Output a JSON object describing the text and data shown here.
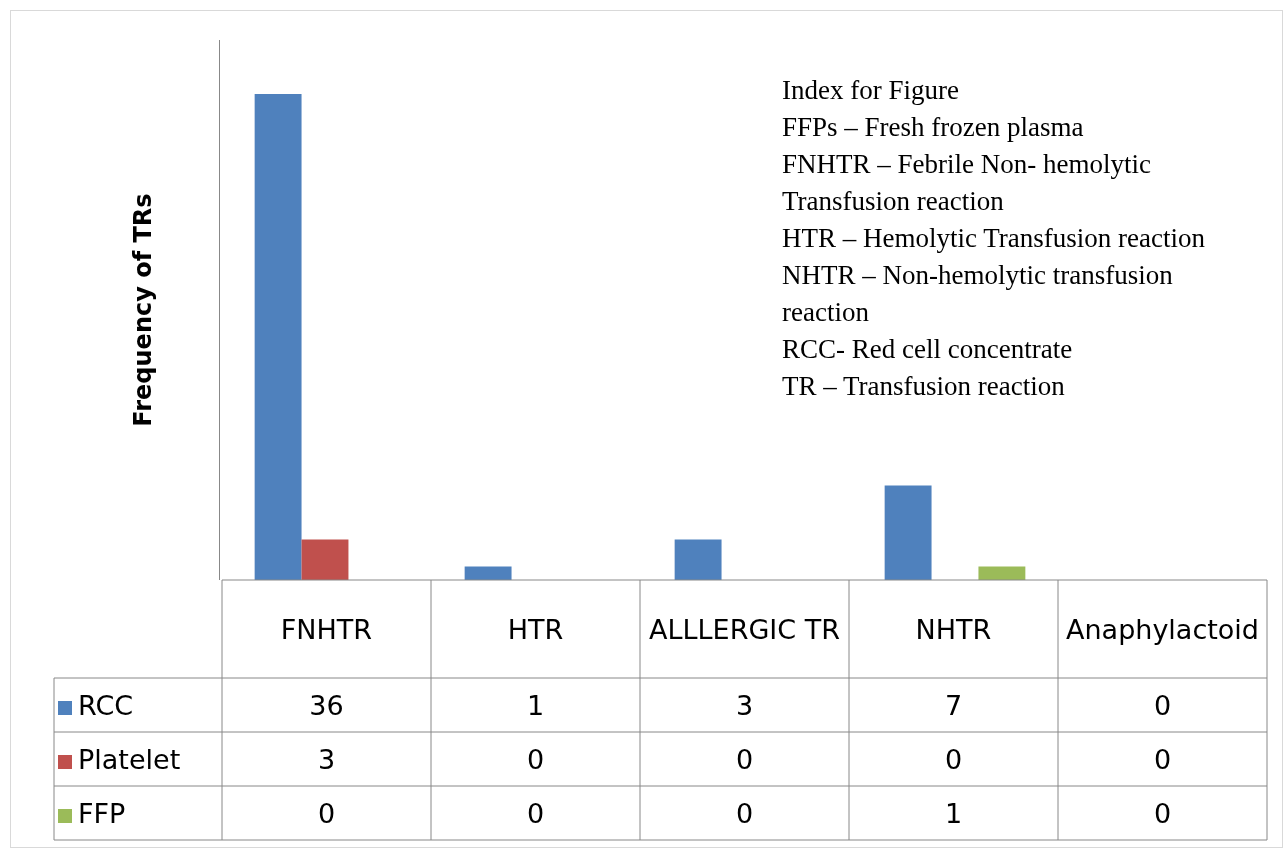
{
  "chart_data": {
    "type": "bar",
    "ylabel": "Frequency of TRs",
    "categories": [
      "FNHTR",
      "HTR",
      "ALLLERGIC TR",
      "NHTR",
      "Anaphylactoid"
    ],
    "series": [
      {
        "name": "RCC",
        "color": "#4f81bd",
        "values": [
          36,
          1,
          3,
          7,
          0
        ]
      },
      {
        "name": "Platelet",
        "color": "#c0504d",
        "values": [
          3,
          0,
          0,
          0,
          0
        ]
      },
      {
        "name": "FFP",
        "color": "#9bbb59",
        "values": [
          0,
          0,
          0,
          1,
          0
        ]
      }
    ],
    "ylim": [
      0,
      40
    ],
    "tick_labels": "x",
    "data_labels": true,
    "legend": "bottom",
    "annotations": [
      "Index for Figure",
      "FFPs – Fresh frozen plasma",
      "FNHTR – Febrile Non- hemolytic Transfusion reaction",
      "HTR – Hemolytic Transfusion reaction",
      "NHTR – Non-hemolytic transfusion reaction",
      "RCC- Red cell concentrate",
      "TR – Transfusion reaction"
    ]
  }
}
